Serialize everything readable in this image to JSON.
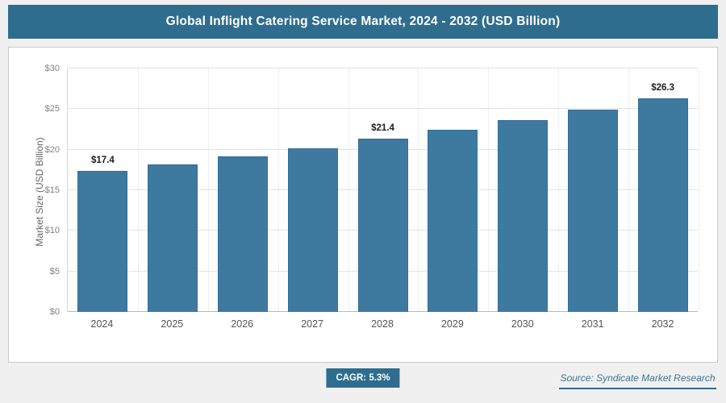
{
  "header": {
    "title": "Global Inflight Catering Service Market, 2024 - 2032 (USD Billion)"
  },
  "chart_data": {
    "type": "bar",
    "title": "Global Inflight Catering Service Market, 2024 - 2032 (USD Billion)",
    "categories": [
      "2024",
      "2025",
      "2026",
      "2027",
      "2028",
      "2029",
      "2030",
      "2031",
      "2032"
    ],
    "values": [
      17.4,
      18.2,
      19.2,
      20.2,
      21.4,
      22.5,
      23.6,
      24.9,
      26.3
    ],
    "bar_labels": [
      "$17.4",
      "",
      "",
      "",
      "$21.4",
      "",
      "",
      "",
      "$26.3"
    ],
    "xlabel": "",
    "ylabel": "Market Size (USD Billion)",
    "ylim": [
      0,
      30
    ],
    "ytick_step": 5,
    "ytick_labels": [
      "$0",
      "$5",
      "$10",
      "$15",
      "$20",
      "$25",
      "$30"
    ],
    "grid": "horizontal",
    "legend": "none",
    "bar_color": "#3e79a0"
  },
  "footer": {
    "cagr_badge": "CAGR: 5.3%",
    "source": "Source: Syndicate Market Research"
  },
  "colors": {
    "header_bg": "#2e6d8e",
    "bar": "#3e79a0",
    "badge_bg": "#2e6d8e",
    "source_text": "#3f7492",
    "underline": "#2e6d8e"
  }
}
